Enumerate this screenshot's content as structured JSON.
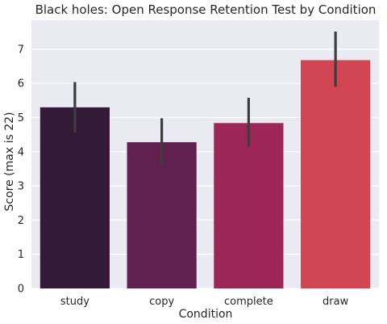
{
  "chart_data": {
    "type": "bar",
    "title": "Black holes: Open Response Retention Test by Condition",
    "xlabel": "Condition",
    "ylabel": "Score (max is 22)",
    "categories": [
      "study",
      "copy",
      "complete",
      "draw"
    ],
    "values": [
      5.3,
      4.28,
      4.84,
      6.68
    ],
    "error_low": [
      4.56,
      3.6,
      4.16,
      5.9
    ],
    "error_high": [
      6.04,
      4.98,
      5.58,
      7.52
    ],
    "ylim": [
      0,
      7.85
    ],
    "yticks": [
      0,
      1,
      2,
      3,
      4,
      5,
      6,
      7
    ],
    "grid": true,
    "colors": {
      "background": "#eaeaf2",
      "grid": "#ffffff",
      "bars": [
        "#331a38",
        "#61214f",
        "#9c2657",
        "#d24653"
      ],
      "error_bar": "#3d3d3d"
    }
  }
}
